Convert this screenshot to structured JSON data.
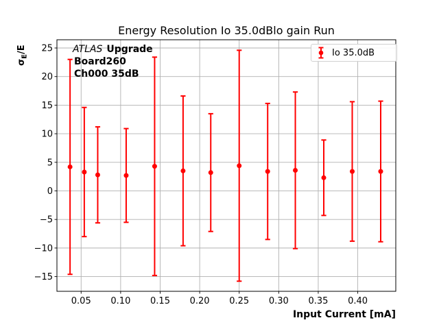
{
  "figure": {
    "title": "Energy Resolution Io 35.0dBlo gain Run",
    "xlabel": "Input Current [mA]",
    "ylabel": {
      "sigma": "σ",
      "subscript": "E",
      "rest": "/E"
    },
    "annotation": {
      "experiment": "ATLAS",
      "line1_rest": "Upgrade",
      "line2": "Board260",
      "line3": "Ch000 35dB"
    },
    "legend": {
      "label": "Io 35.0dB"
    }
  },
  "colors": {
    "series": "#ff0000",
    "grid": "#b0b0b0",
    "spine": "#000000",
    "tick": "#000000",
    "text": "#000000",
    "legend_border": "#d0d0d0",
    "background": "#ffffff"
  },
  "chart_data": {
    "type": "scatter",
    "subtype": "errorbar",
    "title": "Energy Resolution Io 35.0dBlo gain Run",
    "xlabel": "Input Current [mA]",
    "ylabel": "σ_E/E",
    "grid": true,
    "legend_position": "upper right",
    "xlim": [
      0.0194,
      0.4481
    ],
    "ylim": [
      -17.57,
      26.44
    ],
    "xticks": [
      0.05,
      0.1,
      0.15,
      0.2,
      0.25,
      0.3,
      0.35,
      0.4
    ],
    "xtick_labels": [
      "0.05",
      "0.10",
      "0.15",
      "0.20",
      "0.25",
      "0.30",
      "0.35",
      "0.40"
    ],
    "yticks": [
      25,
      20,
      15,
      10,
      5,
      0,
      -5,
      -10,
      -15
    ],
    "ytick_labels": [
      "25",
      "20",
      "15",
      "10",
      "5",
      "0",
      "−5",
      "−10",
      "−15"
    ],
    "series": [
      {
        "name": "Io 35.0dB",
        "color": "#ff0000",
        "x": [
          0.036,
          0.054,
          0.071,
          0.107,
          0.143,
          0.179,
          0.214,
          0.25,
          0.286,
          0.321,
          0.357,
          0.393,
          0.429
        ],
        "y": [
          4.2,
          3.3,
          2.8,
          2.7,
          4.3,
          3.5,
          3.2,
          4.4,
          3.4,
          3.6,
          2.3,
          3.4,
          3.4
        ],
        "yerr": [
          18.8,
          11.3,
          8.4,
          8.2,
          19.1,
          13.1,
          10.3,
          20.2,
          11.9,
          13.7,
          6.6,
          12.2,
          12.3
        ]
      }
    ]
  }
}
